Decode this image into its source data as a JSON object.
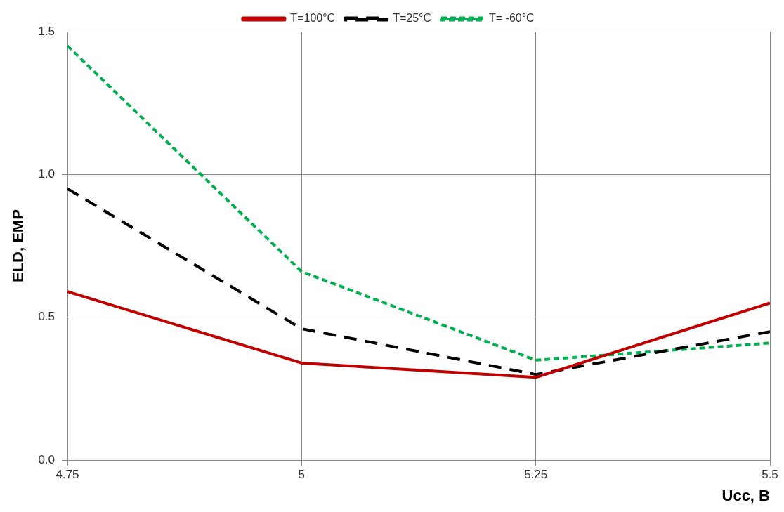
{
  "chart_data": {
    "type": "line",
    "xlabel": "Ucc, B",
    "ylabel": "ELD, EMP",
    "x": [
      4.75,
      5,
      5.25,
      5.5
    ],
    "series": [
      {
        "name": "T=100°C",
        "color": "#c00000",
        "line_style": "solid",
        "values": [
          0.59,
          0.34,
          0.29,
          0.55
        ]
      },
      {
        "name": "T=25°C",
        "color": "#000000",
        "line_style": "dashed",
        "values": [
          0.95,
          0.46,
          0.3,
          0.45
        ]
      },
      {
        "name": "T= -60°C",
        "color": "#00b050",
        "line_style": "dotted",
        "values": [
          1.45,
          0.66,
          0.35,
          0.41
        ]
      }
    ],
    "xlim": [
      4.75,
      5.5
    ],
    "xticks": [
      4.75,
      5,
      5.25,
      5.5
    ],
    "ylim": [
      0,
      1.5
    ],
    "yticks": [
      {
        "value": 0,
        "label": "0.0"
      },
      {
        "value": 0.5,
        "label": "0.5"
      },
      {
        "value": 1,
        "label": "1.0"
      },
      {
        "value": 1.5,
        "label": "1.5"
      }
    ],
    "grid": true,
    "legend": "top",
    "marker": "none"
  }
}
